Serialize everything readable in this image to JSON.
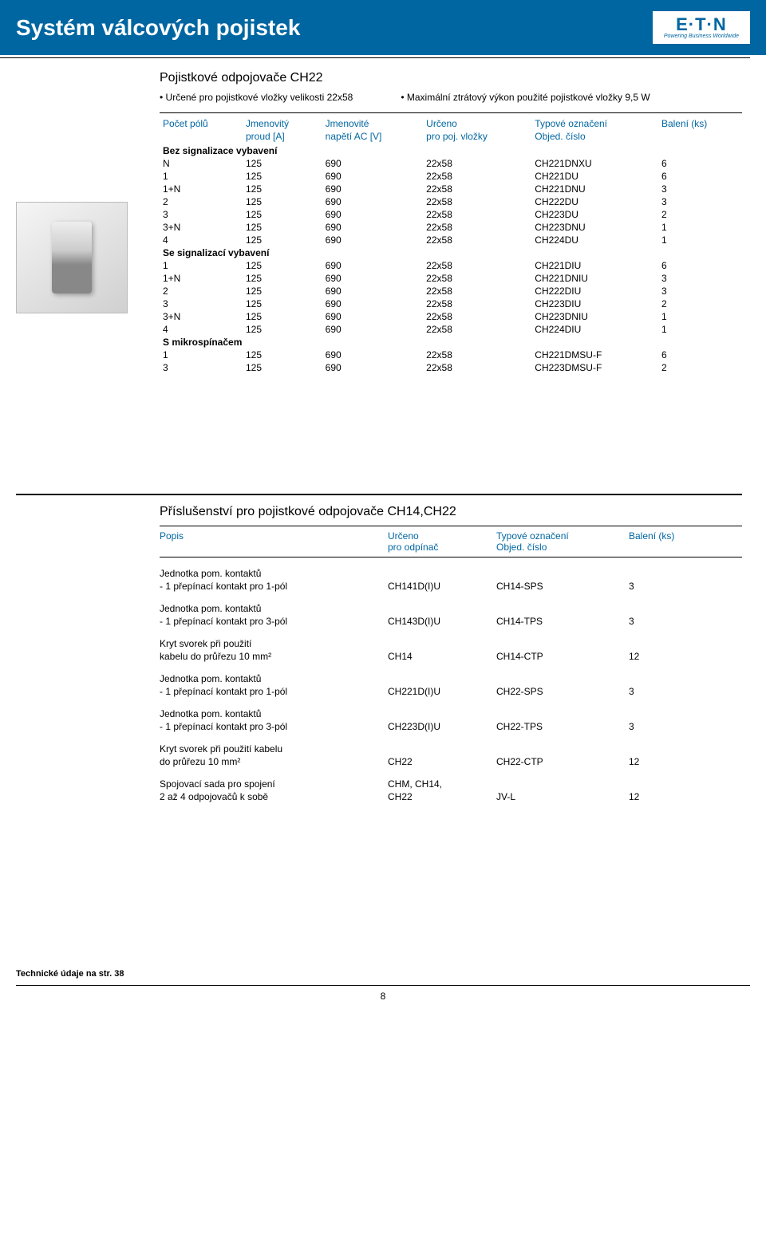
{
  "header": {
    "title": "Systém válcových pojistek",
    "logo_text": "E·T·N",
    "logo_sub": "Powering Business Worldwide"
  },
  "section1": {
    "title": "Pojistkové odpojovače CH22",
    "bullet1": "Určené pro pojistkové vložky velikosti 22x58",
    "bullet2": "Maximální ztrátový výkon použité pojistkové vložky 9,5 W",
    "columns": {
      "c1a": "Počet pólů",
      "c1b": "",
      "c2a": "Jmenovitý",
      "c2b": "proud [A]",
      "c3a": "Jmenovité",
      "c3b": "napětí AC [V]",
      "c4a": "Určeno",
      "c4b": "pro poj. vložky",
      "c5a": "Typové označení",
      "c5b": "Objed. číslo",
      "c6a": "Balení (ks)",
      "c6b": ""
    },
    "groups": [
      {
        "title": "Bez signalizace vybavení",
        "rows": [
          {
            "c1": "N",
            "c2": "125",
            "c3": "690",
            "c4": "22x58",
            "c5": "CH221DNXU",
            "c6": "6"
          },
          {
            "c1": "1",
            "c2": "125",
            "c3": "690",
            "c4": "22x58",
            "c5": "CH221DU",
            "c6": "6"
          },
          {
            "c1": "1+N",
            "c2": "125",
            "c3": "690",
            "c4": "22x58",
            "c5": "CH221DNU",
            "c6": "3"
          },
          {
            "c1": "2",
            "c2": "125",
            "c3": "690",
            "c4": "22x58",
            "c5": "CH222DU",
            "c6": "3"
          },
          {
            "c1": "3",
            "c2": "125",
            "c3": "690",
            "c4": "22x58",
            "c5": "CH223DU",
            "c6": "2"
          },
          {
            "c1": "3+N",
            "c2": "125",
            "c3": "690",
            "c4": "22x58",
            "c5": "CH223DNU",
            "c6": "1"
          },
          {
            "c1": "4",
            "c2": "125",
            "c3": "690",
            "c4": "22x58",
            "c5": "CH224DU",
            "c6": "1"
          }
        ]
      },
      {
        "title": "Se signalizací vybavení",
        "rows": [
          {
            "c1": "1",
            "c2": "125",
            "c3": "690",
            "c4": "22x58",
            "c5": "CH221DIU",
            "c6": "6"
          },
          {
            "c1": "1+N",
            "c2": "125",
            "c3": "690",
            "c4": "22x58",
            "c5": "CH221DNIU",
            "c6": "3"
          },
          {
            "c1": "2",
            "c2": "125",
            "c3": "690",
            "c4": "22x58",
            "c5": "CH222DIU",
            "c6": "3"
          },
          {
            "c1": "3",
            "c2": "125",
            "c3": "690",
            "c4": "22x58",
            "c5": "CH223DIU",
            "c6": "2"
          },
          {
            "c1": "3+N",
            "c2": "125",
            "c3": "690",
            "c4": "22x58",
            "c5": "CH223DNIU",
            "c6": "1"
          },
          {
            "c1": "4",
            "c2": "125",
            "c3": "690",
            "c4": "22x58",
            "c5": "CH224DIU",
            "c6": "1"
          }
        ]
      },
      {
        "title": "S mikrospínačem",
        "rows": [
          {
            "c1": "1",
            "c2": "125",
            "c3": "690",
            "c4": "22x58",
            "c5": "CH221DMSU-F",
            "c6": "6"
          },
          {
            "c1": "3",
            "c2": "125",
            "c3": "690",
            "c4": "22x58",
            "c5": "CH223DMSU-F",
            "c6": "2"
          }
        ]
      }
    ]
  },
  "section2": {
    "title": "Příslušenství pro pojistkové odpojovače CH14,CH22",
    "columns": {
      "c1a": "Popis",
      "c2a": "Určeno",
      "c2b": "pro odpínač",
      "c3a": "Typové označení",
      "c3b": "Objed. číslo",
      "c4a": "Balení (ks)"
    },
    "items": [
      {
        "l1": "Jednotka pom. kontaktů",
        "l2": "- 1 přepínací kontakt pro 1-pól",
        "c2": "CH141D(I)U",
        "c3": "CH14-SPS",
        "c4": "3"
      },
      {
        "l1": "Jednotka pom. kontaktů",
        "l2": "- 1 přepínací kontakt pro 3-pól",
        "c2": "CH143D(I)U",
        "c3": "CH14-TPS",
        "c4": "3"
      },
      {
        "l1": "Kryt svorek při použití",
        "l2": "kabelu do průřezu 10 mm²",
        "c2": "CH14",
        "c3": "CH14-CTP",
        "c4": "12"
      },
      {
        "l1": "Jednotka pom. kontaktů",
        "l2": "- 1 přepínací kontakt pro 1-pól",
        "c2": "CH221D(I)U",
        "c3": "CH22-SPS",
        "c4": "3"
      },
      {
        "l1": "Jednotka pom. kontaktů",
        "l2": "- 1 přepínací kontakt pro 3-pól",
        "c2": "CH223D(I)U",
        "c3": "CH22-TPS",
        "c4": "3"
      },
      {
        "l1": "Kryt svorek při použití kabelu",
        "l2": "do průřezu 10 mm²",
        "c2": "CH22",
        "c3": "CH22-CTP",
        "c4": "12"
      },
      {
        "l1": "Spojovací sada pro spojení",
        "l2": "2 až 4 odpojovačů k sobě",
        "c2": "CHM, CH14, CH22",
        "c3": "JV-L",
        "c4": "12",
        "multiline_c2a": "CHM, CH14,",
        "multiline_c2b": "CH22"
      }
    ]
  },
  "footer": {
    "note": "Technické údaje na str. 38",
    "page": "8"
  }
}
